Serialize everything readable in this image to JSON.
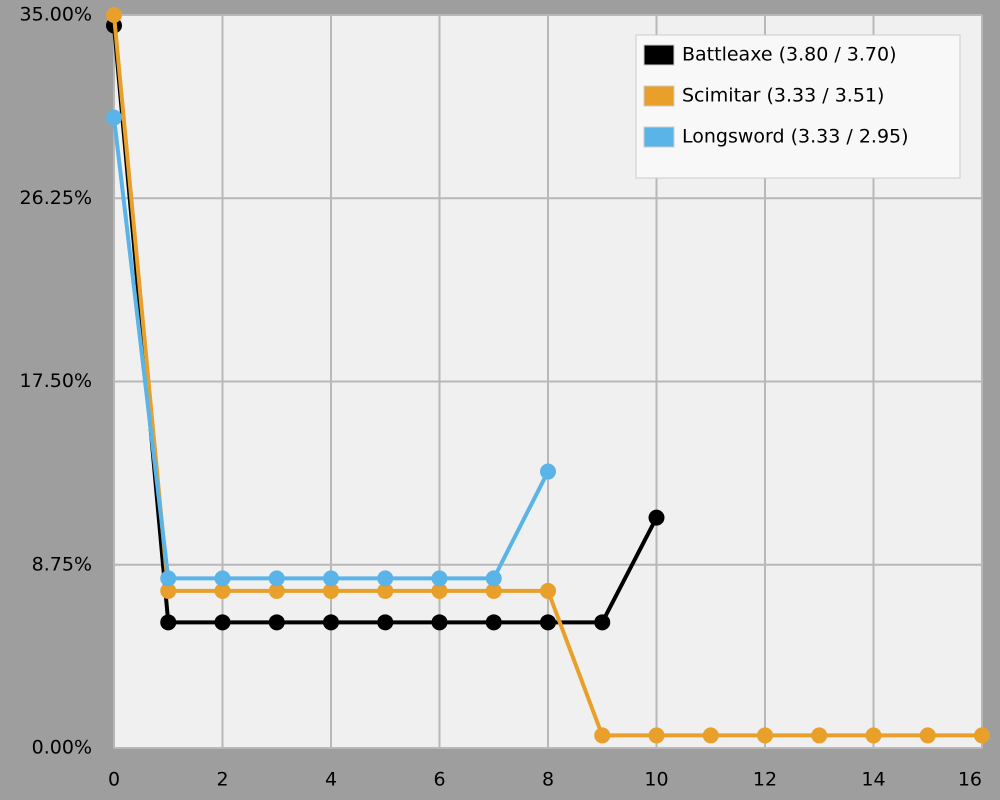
{
  "chart_data": {
    "type": "line",
    "x": [
      0,
      1,
      2,
      3,
      4,
      5,
      6,
      7,
      8,
      9,
      10,
      11,
      12,
      13,
      14,
      15,
      16
    ],
    "series": [
      {
        "name": "Battleaxe (3.80 / 3.70)",
        "color": "#000000",
        "values": [
          34.5,
          6,
          6,
          6,
          6,
          6,
          6,
          6,
          6,
          6,
          11,
          null,
          null,
          null,
          null,
          null,
          null
        ]
      },
      {
        "name": "Scimitar (3.33 / 3.51)",
        "color": "#e8a02a",
        "values": [
          35,
          7.5,
          7.5,
          7.5,
          7.5,
          7.5,
          7.5,
          7.5,
          7.5,
          0.6,
          0.6,
          0.6,
          0.6,
          0.6,
          0.6,
          0.6,
          0.6
        ]
      },
      {
        "name": "Longsword (3.33 / 2.95)",
        "color": "#5ab4e8",
        "values": [
          30.1,
          8.1,
          8.1,
          8.1,
          8.1,
          8.1,
          8.1,
          8.1,
          13.2,
          null,
          null,
          null,
          null,
          null,
          null,
          null,
          null
        ]
      }
    ],
    "xlim": [
      0,
      16
    ],
    "xticks": [
      0,
      2,
      4,
      6,
      8,
      10,
      12,
      14,
      16
    ],
    "ylim": [
      0,
      35
    ],
    "yticks": [
      {
        "value": 0,
        "label": "0.00%"
      },
      {
        "value": 8.75,
        "label": "8.75%"
      },
      {
        "value": 17.5,
        "label": "17.50%"
      },
      {
        "value": 26.25,
        "label": "26.25%"
      },
      {
        "value": 35,
        "label": "35.00%"
      }
    ],
    "grid": true,
    "legend": "upper right"
  }
}
